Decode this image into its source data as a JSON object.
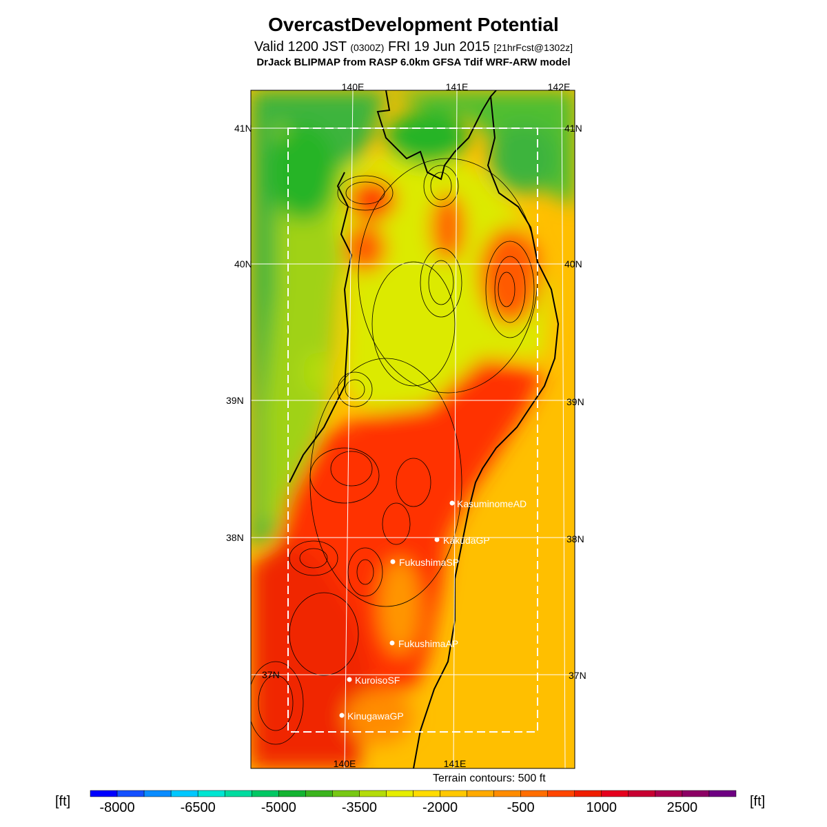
{
  "title": "OvercastDevelopment Potential",
  "subtitle": {
    "valid": "Valid 1200 JST",
    "utc": "(0300Z)",
    "date": "FRI 19 Jun 2015",
    "forecast": "[21hrFcst@1302z]"
  },
  "model_line": "DrJack BLIPMAP from RASP 6.0km GFSA Tdif WRF-ARW model",
  "map": {
    "lon_labels_top": [
      "140E",
      "141E",
      "142E"
    ],
    "lon_labels_bottom": [
      "140E",
      "141E"
    ],
    "lat_labels_left": [
      "41N",
      "40N",
      "39N",
      "38N",
      "37N"
    ],
    "lat_labels_right": [
      "41N",
      "40N",
      "39N",
      "38N",
      "37N"
    ],
    "sites": [
      {
        "name": "KasuminomeAD"
      },
      {
        "name": "KakudaGP"
      },
      {
        "name": "FukushimaSP"
      },
      {
        "name": "FukushimaAP"
      },
      {
        "name": "KuroisoSF"
      },
      {
        "name": "KinugawaGP"
      }
    ]
  },
  "terrain_note": "Terrain contours: 500 ft",
  "colorbar": {
    "unit": "[ft]",
    "tick_labels": [
      "-8000",
      "-6500",
      "-5000",
      "-3500",
      "-2000",
      "-500",
      "1000",
      "2500"
    ],
    "colors": [
      "#0000ff",
      "#1450ff",
      "#0a8cff",
      "#00c8ff",
      "#00e6d2",
      "#00dca0",
      "#00c864",
      "#14b432",
      "#3cb41e",
      "#78c814",
      "#b4dc0a",
      "#e6ee00",
      "#ffdc00",
      "#ffc800",
      "#ffaa00",
      "#ff8c00",
      "#ff6e00",
      "#ff4600",
      "#f01e00",
      "#e6001e",
      "#c80032",
      "#aa0050",
      "#8c0064",
      "#6e0082"
    ]
  }
}
